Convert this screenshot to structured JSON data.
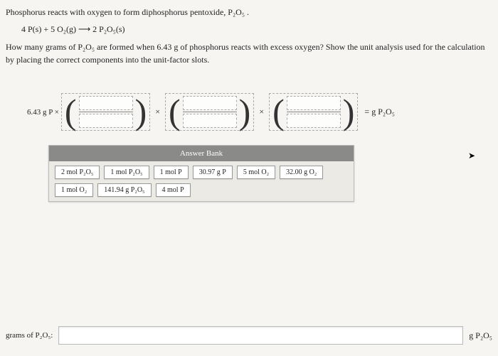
{
  "intro": "Phosphorus reacts with oxygen to form diphosphorus pentoxide, P₂O₅ .",
  "equation": "4 P(s) + 5 O₂(g) ⟶ 2 P₂O₅(s)",
  "question": "How many grams of P₂O₅ are formed when 6.43 g of phosphorus reacts with excess oxygen? Show the unit analysis used for the calculation by placing the correct components into the unit-factor slots.",
  "given": "6.43 g P ×",
  "times": "×",
  "result": "= g P₂O₅",
  "bank_header": "Answer Bank",
  "tiles": [
    "2 mol P₂O₅",
    "1 mol P₂O₅",
    "1 mol P",
    "30.97 g P",
    "5 mol O₂",
    "32.00 g O₂",
    "1 mol O₂",
    "141.94 g P₂O₅",
    "4 mol P"
  ],
  "answer_label": "grams of P₂O₅:",
  "unit_label": "g P₂O₅"
}
